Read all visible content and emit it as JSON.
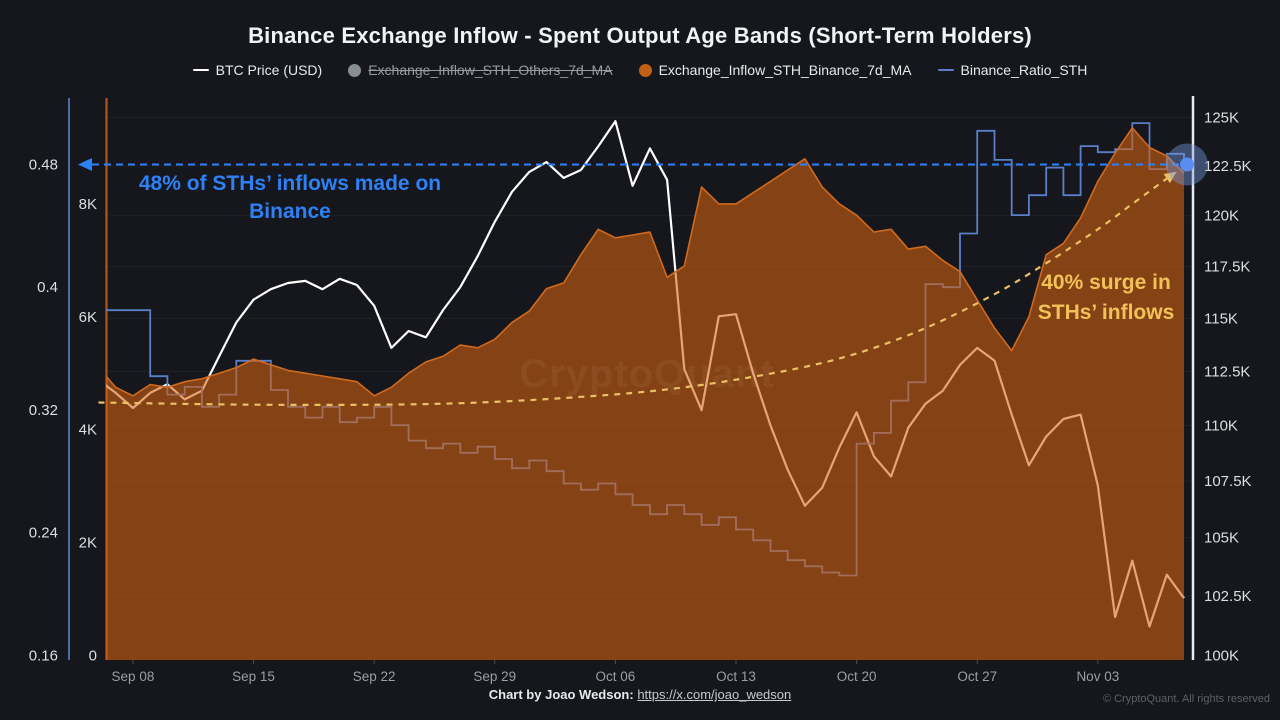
{
  "title": "Binance Exchange Inflow - Spent Output Age Bands (Short-Term Holders)",
  "colors": {
    "background": "#16171c",
    "btc_line": "#ffffff",
    "inflow_fill": "rgba(213,98,16,0.58)",
    "inflow_stroke": "#cf6a1f",
    "inflow_axis": "#b25517",
    "ratio_line": "#5b7fc7",
    "accent_blue": "#2e80f6",
    "accent_yellow": "#e9c165",
    "right_axis": "#e9eaec",
    "grid": "rgba(255,255,255,0.045)",
    "muted_gray": "#898d94",
    "tick_text": "#dcdee0",
    "x_tick_text": "#9a9ea5"
  },
  "legend": [
    {
      "label": "BTC Price (USD)",
      "marker": "line",
      "color": "#ffffff",
      "disabled": false
    },
    {
      "label": "Exchange_Inflow_STH_Others_7d_MA",
      "marker": "dot",
      "color": "#898d94",
      "disabled": true
    },
    {
      "label": "Exchange_Inflow_STH_Binance_7d_MA",
      "marker": "dot",
      "color": "#c35f17",
      "disabled": false
    },
    {
      "label": "Binance_Ratio_STH",
      "marker": "line",
      "color": "#5b7fc7",
      "disabled": false
    }
  ],
  "annotations": {
    "left": {
      "line1": "48% of STHs’ inflows made on",
      "line2": "Binance",
      "color": "#2e80f6"
    },
    "right": {
      "line1": "40% surge in",
      "line2": "STHs’ inflows",
      "color": "#f1c257"
    }
  },
  "watermark": "CryptoQuant",
  "footer": {
    "credit_label": "Chart by Joao Wedson:",
    "link": "https://x.com/joao_wedson"
  },
  "copyright": "© CryptoQuant. All rights reserved",
  "chart_data": {
    "type": "line",
    "x_axis": {
      "unit": "day",
      "count": 64,
      "ticks": [
        {
          "index": 2,
          "label": "Sep 08"
        },
        {
          "index": 9,
          "label": "Sep 15"
        },
        {
          "index": 16,
          "label": "Sep 22"
        },
        {
          "index": 23,
          "label": "Sep 29"
        },
        {
          "index": 30,
          "label": "Oct 06"
        },
        {
          "index": 37,
          "label": "Oct 13"
        },
        {
          "index": 44,
          "label": "Oct 20"
        },
        {
          "index": 51,
          "label": "Oct 27"
        },
        {
          "index": 58,
          "label": "Nov 03"
        }
      ]
    },
    "axes": {
      "ratio": {
        "side": "far-left",
        "scale": "linear",
        "ticks": [
          {
            "label": "0.48",
            "value": 0.48
          },
          {
            "label": "0.4",
            "value": 0.4
          },
          {
            "label": "0.32",
            "value": 0.32
          },
          {
            "label": "0.24",
            "value": 0.24
          },
          {
            "label": "0.16",
            "value": 0.16
          }
        ]
      },
      "inflow": {
        "side": "left",
        "scale": "linear",
        "ticks": [
          {
            "label": "8K",
            "value": 8
          },
          {
            "label": "6K",
            "value": 6
          },
          {
            "label": "4K",
            "value": 4
          },
          {
            "label": "2K",
            "value": 2
          },
          {
            "label": "0",
            "value": 0
          }
        ]
      },
      "price": {
        "side": "right",
        "scale": "log",
        "ticks": [
          {
            "label": "125K",
            "value": 125
          },
          {
            "label": "122.5K",
            "value": 122.5
          },
          {
            "label": "120K",
            "value": 120
          },
          {
            "label": "117.5K",
            "value": 117.5
          },
          {
            "label": "115K",
            "value": 115
          },
          {
            "label": "112.5K",
            "value": 112.5
          },
          {
            "label": "110K",
            "value": 110
          },
          {
            "label": "107.5K",
            "value": 107.5
          },
          {
            "label": "105K",
            "value": 105
          },
          {
            "label": "102.5K",
            "value": 102.5
          },
          {
            "label": "100K",
            "value": 100
          }
        ]
      }
    },
    "series": [
      {
        "name": "BTC Price (USD)",
        "type": "line",
        "axis": "price",
        "color": "#ffffff",
        "values": [
          112.1,
          111.5,
          110.8,
          111.5,
          111.9,
          111.2,
          111.6,
          113.2,
          114.8,
          115.9,
          116.4,
          116.7,
          116.8,
          116.4,
          116.9,
          116.6,
          115.6,
          113.6,
          114.4,
          114.1,
          115.4,
          116.5,
          118.0,
          119.7,
          121.2,
          122.2,
          122.7,
          121.9,
          122.3,
          123.5,
          124.8,
          121.5,
          123.4,
          121.8,
          112.6,
          110.7,
          115.1,
          115.2,
          112.4,
          110.0,
          108.0,
          106.4,
          107.2,
          109.0,
          110.6,
          108.6,
          107.7,
          109.9,
          111.0,
          111.6,
          112.8,
          113.6,
          113.0,
          110.5,
          108.2,
          109.5,
          110.3,
          110.5,
          107.3,
          101.6,
          104.0,
          101.2,
          103.4,
          102.4
        ]
      },
      {
        "name": "Exchange_Inflow_STH_Binance_7d_MA",
        "type": "area",
        "axis": "inflow",
        "fill": "rgba(213,98,16,0.58)",
        "stroke": "#cf6a1f",
        "values": [
          5.1,
          4.75,
          4.6,
          4.8,
          4.75,
          4.85,
          4.9,
          5.0,
          5.1,
          5.25,
          5.15,
          5.05,
          5.0,
          4.95,
          4.9,
          4.85,
          4.6,
          4.75,
          5.0,
          5.2,
          5.3,
          5.5,
          5.45,
          5.6,
          5.9,
          6.1,
          6.5,
          6.6,
          7.1,
          7.55,
          7.4,
          7.45,
          7.5,
          6.7,
          6.9,
          8.3,
          8.0,
          8.0,
          8.2,
          8.4,
          8.6,
          8.8,
          8.3,
          8.0,
          7.8,
          7.5,
          7.55,
          7.2,
          7.25,
          7.0,
          6.8,
          6.3,
          5.8,
          5.4,
          6.0,
          7.1,
          7.3,
          7.75,
          8.4,
          8.9,
          9.35,
          9.0,
          8.85,
          8.55
        ]
      },
      {
        "name": "Binance_Ratio_STH",
        "type": "step",
        "axis": "ratio",
        "color": "#5b7fc7",
        "values": [
          0.385,
          0.385,
          0.385,
          0.342,
          0.33,
          0.335,
          0.322,
          0.33,
          0.352,
          0.352,
          0.333,
          0.322,
          0.315,
          0.322,
          0.312,
          0.315,
          0.322,
          0.31,
          0.3,
          0.295,
          0.298,
          0.292,
          0.296,
          0.288,
          0.282,
          0.287,
          0.28,
          0.272,
          0.268,
          0.272,
          0.265,
          0.258,
          0.252,
          0.258,
          0.252,
          0.245,
          0.25,
          0.242,
          0.235,
          0.228,
          0.222,
          0.218,
          0.214,
          0.212,
          0.298,
          0.305,
          0.326,
          0.338,
          0.402,
          0.4,
          0.435,
          0.502,
          0.483,
          0.447,
          0.46,
          0.478,
          0.46,
          0.492,
          0.488,
          0.49,
          0.507,
          0.477,
          0.487,
          0.48
        ]
      },
      {
        "name": "Exchange_Inflow_STH_Others_7d_MA",
        "type": "hidden",
        "axis": "inflow",
        "color": "#898d94",
        "values": []
      }
    ],
    "trend_curve": {
      "axis": "inflow",
      "style": "dashed",
      "color": "#e9c165",
      "points": [
        [
          0,
          4.48
        ],
        [
          10,
          4.44
        ],
        [
          20,
          4.46
        ],
        [
          28,
          4.58
        ],
        [
          34,
          4.75
        ],
        [
          40,
          5.05
        ],
        [
          44,
          5.35
        ],
        [
          48,
          5.8
        ],
        [
          52,
          6.4
        ],
        [
          55,
          6.95
        ],
        [
          58,
          7.55
        ],
        [
          60,
          8.0
        ],
        [
          62,
          8.45
        ]
      ]
    },
    "reference_line": {
      "axis": "ratio",
      "value": 0.48,
      "style": "dashed",
      "color": "#2e80f6",
      "arrow": "left"
    },
    "end_marker": {
      "axis": "ratio",
      "day": 63,
      "value": 0.48,
      "dot_color": "#5a8df0",
      "halo_color": "rgba(120,155,225,0.42)"
    }
  }
}
